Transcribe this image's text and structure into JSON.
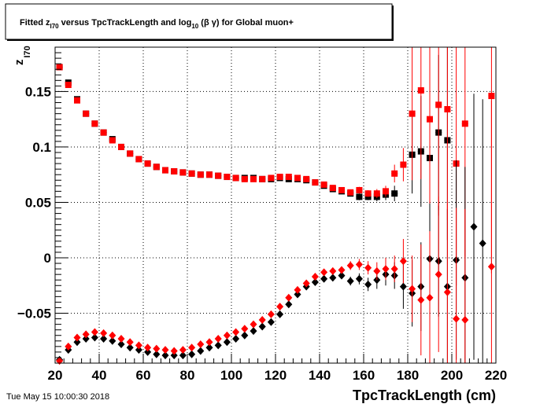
{
  "chart_data": {
    "type": "scatter",
    "title": {
      "pre": "Fitted  z",
      "pre_sub": "I70",
      "mid": "  versus TpcTrackLength and log",
      "mid_sub": "10",
      "post": " (β γ) for Global muon+"
    },
    "xlabel": "TpcTrackLength (cm)",
    "ylabel": {
      "main": "z",
      "sub": "I70"
    },
    "timestamp": "Tue May 15 10:00:30 2018",
    "xlim": [
      20,
      220
    ],
    "ylim": [
      -0.095,
      0.19
    ],
    "xticks": [
      20,
      40,
      60,
      80,
      100,
      120,
      140,
      160,
      180,
      200,
      220
    ],
    "xtick_labels": [
      "20",
      "40",
      "60",
      "80",
      "100",
      "120",
      "140",
      "160",
      "180",
      "200",
      "220"
    ],
    "yticks": [
      -0.05,
      0,
      0.05,
      0.1,
      0.15
    ],
    "ytick_labels": [
      "−0.05",
      "0",
      "0.05",
      "0.1",
      "0.15"
    ],
    "grid": true,
    "series": [
      {
        "marker": "square",
        "color": "#000000",
        "points": [
          [
            22,
            0.172,
            0.002
          ],
          [
            26,
            0.158,
            0.002
          ],
          [
            30,
            0.143,
            0.002
          ],
          [
            34,
            0.13,
            0.002
          ],
          [
            38,
            0.121,
            0.001
          ],
          [
            42,
            0.113,
            0.001
          ],
          [
            46,
            0.107,
            0.001
          ],
          [
            50,
            0.1,
            0.001
          ],
          [
            54,
            0.094,
            0.001
          ],
          [
            58,
            0.089,
            0.001
          ],
          [
            62,
            0.085,
            0.001
          ],
          [
            66,
            0.082,
            0.001
          ],
          [
            70,
            0.079,
            0.001
          ],
          [
            74,
            0.078,
            0.001
          ],
          [
            78,
            0.077,
            0.001
          ],
          [
            82,
            0.076,
            0.001
          ],
          [
            86,
            0.075,
            0.001
          ],
          [
            90,
            0.075,
            0.001
          ],
          [
            94,
            0.074,
            0.001
          ],
          [
            98,
            0.073,
            0.001
          ],
          [
            102,
            0.072,
            0.001
          ],
          [
            106,
            0.072,
            0.001
          ],
          [
            110,
            0.072,
            0.001
          ],
          [
            114,
            0.071,
            0.001
          ],
          [
            118,
            0.071,
            0.001
          ],
          [
            122,
            0.072,
            0.001
          ],
          [
            126,
            0.071,
            0.001
          ],
          [
            130,
            0.071,
            0.001
          ],
          [
            134,
            0.07,
            0.001
          ],
          [
            138,
            0.068,
            0.002
          ],
          [
            142,
            0.065,
            0.002
          ],
          [
            146,
            0.062,
            0.002
          ],
          [
            150,
            0.06,
            0.002
          ],
          [
            154,
            0.058,
            0.002
          ],
          [
            158,
            0.055,
            0.003
          ],
          [
            162,
            0.055,
            0.003
          ],
          [
            166,
            0.055,
            0.004
          ],
          [
            170,
            0.057,
            0.005
          ],
          [
            174,
            0.058,
            0.007
          ],
          [
            182,
            0.093,
            0.035
          ],
          [
            186,
            0.096,
            0.05
          ],
          [
            190,
            0.09,
            0.06
          ],
          [
            194,
            0.113,
            0.07
          ],
          [
            198,
            0.106,
            0.09
          ]
        ]
      },
      {
        "marker": "square",
        "color": "#ff0000",
        "points": [
          [
            22,
            0.172,
            0.002
          ],
          [
            26,
            0.156,
            0.002
          ],
          [
            30,
            0.142,
            0.002
          ],
          [
            34,
            0.13,
            0.002
          ],
          [
            38,
            0.121,
            0.001
          ],
          [
            42,
            0.113,
            0.001
          ],
          [
            46,
            0.106,
            0.001
          ],
          [
            50,
            0.1,
            0.001
          ],
          [
            54,
            0.094,
            0.001
          ],
          [
            58,
            0.089,
            0.001
          ],
          [
            62,
            0.085,
            0.001
          ],
          [
            66,
            0.082,
            0.001
          ],
          [
            70,
            0.079,
            0.001
          ],
          [
            74,
            0.078,
            0.001
          ],
          [
            78,
            0.077,
            0.001
          ],
          [
            82,
            0.076,
            0.001
          ],
          [
            86,
            0.075,
            0.001
          ],
          [
            90,
            0.075,
            0.001
          ],
          [
            94,
            0.074,
            0.001
          ],
          [
            98,
            0.073,
            0.001
          ],
          [
            102,
            0.072,
            0.001
          ],
          [
            106,
            0.071,
            0.001
          ],
          [
            110,
            0.071,
            0.001
          ],
          [
            114,
            0.071,
            0.001
          ],
          [
            118,
            0.072,
            0.001
          ],
          [
            122,
            0.073,
            0.001
          ],
          [
            126,
            0.073,
            0.001
          ],
          [
            130,
            0.072,
            0.001
          ],
          [
            134,
            0.071,
            0.001
          ],
          [
            138,
            0.068,
            0.002
          ],
          [
            142,
            0.066,
            0.002
          ],
          [
            146,
            0.063,
            0.002
          ],
          [
            150,
            0.061,
            0.002
          ],
          [
            154,
            0.059,
            0.002
          ],
          [
            158,
            0.061,
            0.003
          ],
          [
            162,
            0.058,
            0.003
          ],
          [
            166,
            0.058,
            0.004
          ],
          [
            170,
            0.06,
            0.005
          ],
          [
            174,
            0.076,
            0.008
          ],
          [
            178,
            0.084,
            0.015
          ],
          [
            182,
            0.13,
            0.06
          ],
          [
            186,
            0.151,
            0.08
          ],
          [
            190,
            0.125,
            0.09
          ],
          [
            194,
            0.138,
            0.1
          ],
          [
            198,
            0.134,
            0.1
          ],
          [
            202,
            0.085,
            0.11
          ],
          [
            206,
            0.121,
            0.12
          ],
          [
            218,
            0.146,
            0.16
          ]
        ]
      },
      {
        "marker": "diamond",
        "color": "#000000",
        "points": [
          [
            22,
            -0.092,
            0.003
          ],
          [
            26,
            -0.083,
            0.002
          ],
          [
            30,
            -0.076,
            0.002
          ],
          [
            34,
            -0.073,
            0.002
          ],
          [
            38,
            -0.072,
            0.002
          ],
          [
            42,
            -0.073,
            0.002
          ],
          [
            46,
            -0.075,
            0.002
          ],
          [
            50,
            -0.078,
            0.002
          ],
          [
            54,
            -0.081,
            0.002
          ],
          [
            58,
            -0.083,
            0.002
          ],
          [
            62,
            -0.085,
            0.002
          ],
          [
            66,
            -0.087,
            0.002
          ],
          [
            70,
            -0.088,
            0.002
          ],
          [
            74,
            -0.088,
            0.002
          ],
          [
            78,
            -0.088,
            0.002
          ],
          [
            82,
            -0.087,
            0.002
          ],
          [
            86,
            -0.084,
            0.002
          ],
          [
            90,
            -0.081,
            0.002
          ],
          [
            94,
            -0.079,
            0.002
          ],
          [
            98,
            -0.076,
            0.002
          ],
          [
            102,
            -0.073,
            0.002
          ],
          [
            106,
            -0.07,
            0.002
          ],
          [
            110,
            -0.066,
            0.002
          ],
          [
            114,
            -0.062,
            0.002
          ],
          [
            118,
            -0.058,
            0.002
          ],
          [
            122,
            -0.051,
            0.002
          ],
          [
            126,
            -0.042,
            0.002
          ],
          [
            130,
            -0.033,
            0.002
          ],
          [
            134,
            -0.026,
            0.002
          ],
          [
            138,
            -0.022,
            0.002
          ],
          [
            142,
            -0.019,
            0.002
          ],
          [
            146,
            -0.018,
            0.003
          ],
          [
            150,
            -0.016,
            0.003
          ],
          [
            154,
            -0.021,
            0.004
          ],
          [
            158,
            -0.019,
            0.005
          ],
          [
            162,
            -0.024,
            0.006
          ],
          [
            166,
            -0.02,
            0.008
          ],
          [
            170,
            -0.015,
            0.01
          ],
          [
            174,
            -0.016,
            0.012
          ],
          [
            178,
            -0.026,
            0.02
          ],
          [
            182,
            -0.032,
            0.03
          ],
          [
            186,
            -0.026,
            0.04
          ],
          [
            190,
            -0.001,
            0.05
          ],
          [
            194,
            -0.003,
            0.05
          ],
          [
            198,
            -0.026,
            0.07
          ],
          [
            202,
            -0.002,
            0.09
          ],
          [
            206,
            -0.018,
            0.1
          ],
          [
            210,
            0.028,
            0.12
          ],
          [
            214,
            0.013,
            0.13
          ]
        ]
      },
      {
        "marker": "diamond",
        "color": "#ff0000",
        "points": [
          [
            22,
            -0.093,
            0.003
          ],
          [
            26,
            -0.08,
            0.002
          ],
          [
            30,
            -0.072,
            0.002
          ],
          [
            34,
            -0.069,
            0.002
          ],
          [
            38,
            -0.067,
            0.002
          ],
          [
            42,
            -0.068,
            0.002
          ],
          [
            46,
            -0.07,
            0.002
          ],
          [
            50,
            -0.073,
            0.002
          ],
          [
            54,
            -0.076,
            0.002
          ],
          [
            58,
            -0.079,
            0.002
          ],
          [
            62,
            -0.081,
            0.002
          ],
          [
            66,
            -0.082,
            0.002
          ],
          [
            70,
            -0.083,
            0.002
          ],
          [
            74,
            -0.084,
            0.002
          ],
          [
            78,
            -0.083,
            0.002
          ],
          [
            82,
            -0.081,
            0.002
          ],
          [
            86,
            -0.078,
            0.002
          ],
          [
            90,
            -0.076,
            0.002
          ],
          [
            94,
            -0.073,
            0.002
          ],
          [
            98,
            -0.07,
            0.002
          ],
          [
            102,
            -0.067,
            0.002
          ],
          [
            106,
            -0.064,
            0.002
          ],
          [
            110,
            -0.06,
            0.002
          ],
          [
            114,
            -0.056,
            0.002
          ],
          [
            118,
            -0.051,
            0.002
          ],
          [
            122,
            -0.044,
            0.002
          ],
          [
            126,
            -0.036,
            0.002
          ],
          [
            130,
            -0.029,
            0.002
          ],
          [
            134,
            -0.023,
            0.002
          ],
          [
            138,
            -0.017,
            0.002
          ],
          [
            142,
            -0.013,
            0.002
          ],
          [
            146,
            -0.012,
            0.003
          ],
          [
            150,
            -0.011,
            0.003
          ],
          [
            154,
            -0.007,
            0.004
          ],
          [
            158,
            -0.006,
            0.005
          ],
          [
            162,
            -0.009,
            0.006
          ],
          [
            166,
            -0.012,
            0.008
          ],
          [
            170,
            -0.01,
            0.01
          ],
          [
            174,
            -0.01,
            0.012
          ],
          [
            178,
            -0.003,
            0.02
          ],
          [
            182,
            -0.028,
            0.03
          ],
          [
            186,
            -0.038,
            0.05
          ],
          [
            190,
            -0.036,
            0.06
          ],
          [
            194,
            -0.015,
            0.07
          ],
          [
            198,
            -0.031,
            0.08
          ],
          [
            202,
            -0.055,
            0.1
          ],
          [
            206,
            -0.056,
            0.1
          ],
          [
            218,
            -0.008,
            0.15
          ]
        ]
      }
    ]
  }
}
